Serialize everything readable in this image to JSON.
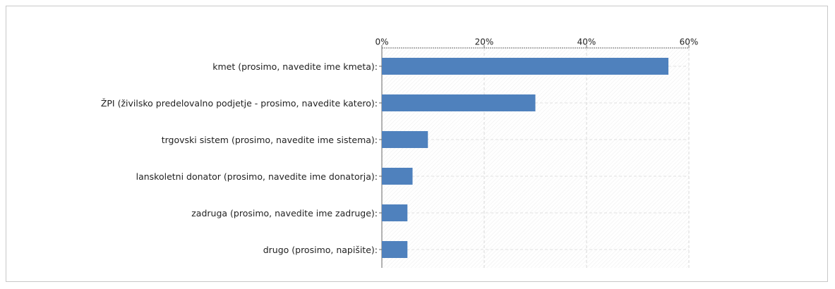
{
  "chart_data": {
    "type": "barh",
    "categories": [
      "kmet (prosimo, navedite ime kmeta):",
      "ŽPI (živilsko predelovalno podjetje - prosimo, navedite katero):",
      "trgovski sistem (prosimo, navedite ime sistema):",
      "lanskoletni donator (prosimo, navedite ime donatorja):",
      "zadruga (prosimo, navedite ime zadruge):",
      "drugo (prosimo, napišite):"
    ],
    "values": [
      56,
      30,
      9,
      6,
      5,
      5
    ],
    "color": "#4f81bd",
    "xlim": [
      0,
      60
    ],
    "xticks": [
      {
        "value": 0,
        "label": "0%"
      },
      {
        "value": 20,
        "label": "20%"
      },
      {
        "value": 40,
        "label": "40%"
      },
      {
        "value": 60,
        "label": "60%"
      }
    ],
    "grid": true
  }
}
